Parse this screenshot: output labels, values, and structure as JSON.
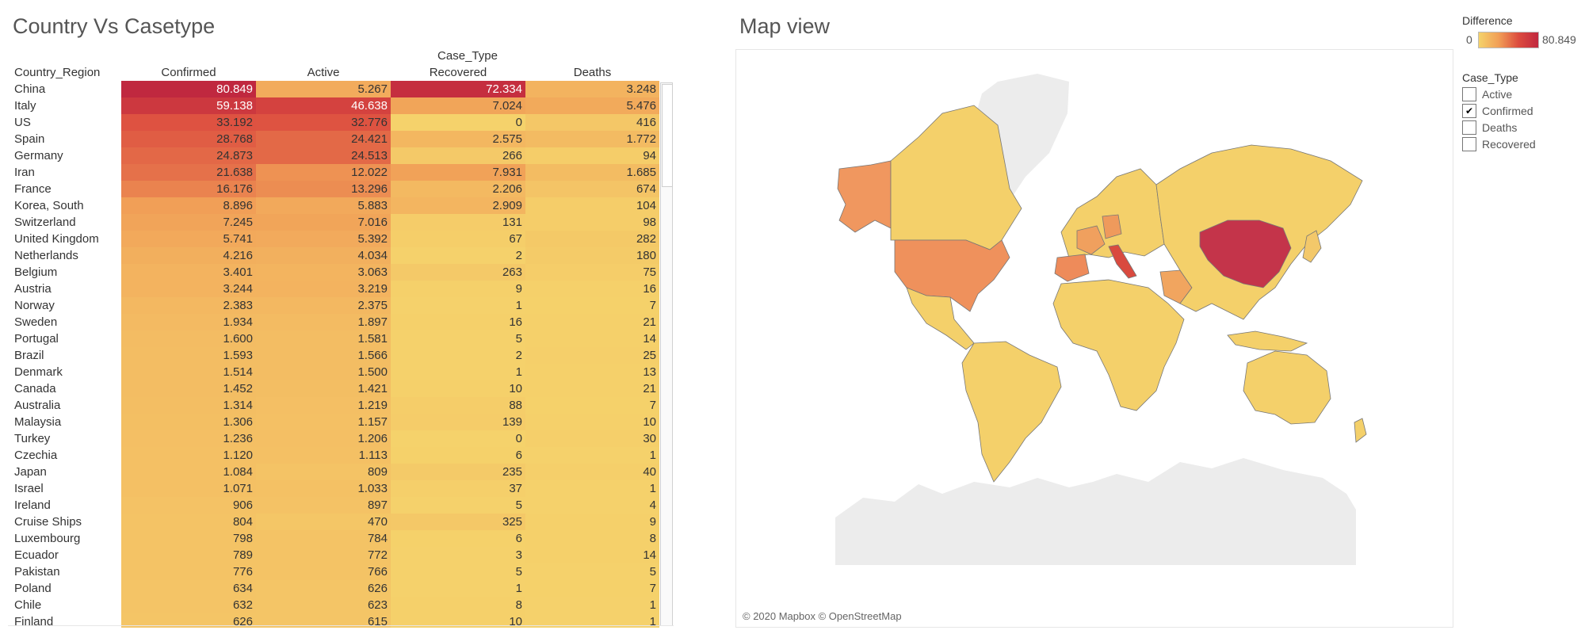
{
  "titles": {
    "table": "Country Vs Casetype",
    "map": "Map view"
  },
  "table": {
    "column_group": "Case_Type",
    "row_header": "Country_Region",
    "columns": [
      "Confirmed",
      "Active",
      "Recovered",
      "Deaths"
    ],
    "rows": [
      {
        "name": "China",
        "values": [
          "80.849",
          "5.267",
          "72.334",
          "3.248"
        ],
        "levels": [
          80849,
          5267,
          72334,
          3248
        ]
      },
      {
        "name": "Italy",
        "values": [
          "59.138",
          "46.638",
          "7.024",
          "5.476"
        ],
        "levels": [
          59138,
          46638,
          7024,
          5476
        ]
      },
      {
        "name": "US",
        "values": [
          "33.192",
          "32.776",
          "0",
          "416"
        ],
        "levels": [
          33192,
          32776,
          0,
          416
        ]
      },
      {
        "name": "Spain",
        "values": [
          "28.768",
          "24.421",
          "2.575",
          "1.772"
        ],
        "levels": [
          28768,
          24421,
          2575,
          1772
        ]
      },
      {
        "name": "Germany",
        "values": [
          "24.873",
          "24.513",
          "266",
          "94"
        ],
        "levels": [
          24873,
          24513,
          266,
          94
        ]
      },
      {
        "name": "Iran",
        "values": [
          "21.638",
          "12.022",
          "7.931",
          "1.685"
        ],
        "levels": [
          21638,
          12022,
          7931,
          1685
        ]
      },
      {
        "name": "France",
        "values": [
          "16.176",
          "13.296",
          "2.206",
          "674"
        ],
        "levels": [
          16176,
          13296,
          2206,
          674
        ]
      },
      {
        "name": "Korea, South",
        "values": [
          "8.896",
          "5.883",
          "2.909",
          "104"
        ],
        "levels": [
          8896,
          5883,
          2909,
          104
        ]
      },
      {
        "name": "Switzerland",
        "values": [
          "7.245",
          "7.016",
          "131",
          "98"
        ],
        "levels": [
          7245,
          7016,
          131,
          98
        ]
      },
      {
        "name": "United Kingdom",
        "values": [
          "5.741",
          "5.392",
          "67",
          "282"
        ],
        "levels": [
          5741,
          5392,
          67,
          282
        ]
      },
      {
        "name": "Netherlands",
        "values": [
          "4.216",
          "4.034",
          "2",
          "180"
        ],
        "levels": [
          4216,
          4034,
          2,
          180
        ]
      },
      {
        "name": "Belgium",
        "values": [
          "3.401",
          "3.063",
          "263",
          "75"
        ],
        "levels": [
          3401,
          3063,
          263,
          75
        ]
      },
      {
        "name": "Austria",
        "values": [
          "3.244",
          "3.219",
          "9",
          "16"
        ],
        "levels": [
          3244,
          3219,
          9,
          16
        ]
      },
      {
        "name": "Norway",
        "values": [
          "2.383",
          "2.375",
          "1",
          "7"
        ],
        "levels": [
          2383,
          2375,
          1,
          7
        ]
      },
      {
        "name": "Sweden",
        "values": [
          "1.934",
          "1.897",
          "16",
          "21"
        ],
        "levels": [
          1934,
          1897,
          16,
          21
        ]
      },
      {
        "name": "Portugal",
        "values": [
          "1.600",
          "1.581",
          "5",
          "14"
        ],
        "levels": [
          1600,
          1581,
          5,
          14
        ]
      },
      {
        "name": "Brazil",
        "values": [
          "1.593",
          "1.566",
          "2",
          "25"
        ],
        "levels": [
          1593,
          1566,
          2,
          25
        ]
      },
      {
        "name": "Denmark",
        "values": [
          "1.514",
          "1.500",
          "1",
          "13"
        ],
        "levels": [
          1514,
          1500,
          1,
          13
        ]
      },
      {
        "name": "Canada",
        "values": [
          "1.452",
          "1.421",
          "10",
          "21"
        ],
        "levels": [
          1452,
          1421,
          10,
          21
        ]
      },
      {
        "name": "Australia",
        "values": [
          "1.314",
          "1.219",
          "88",
          "7"
        ],
        "levels": [
          1314,
          1219,
          88,
          7
        ]
      },
      {
        "name": "Malaysia",
        "values": [
          "1.306",
          "1.157",
          "139",
          "10"
        ],
        "levels": [
          1306,
          1157,
          139,
          10
        ]
      },
      {
        "name": "Turkey",
        "values": [
          "1.236",
          "1.206",
          "0",
          "30"
        ],
        "levels": [
          1236,
          1206,
          0,
          30
        ]
      },
      {
        "name": "Czechia",
        "values": [
          "1.120",
          "1.113",
          "6",
          "1"
        ],
        "levels": [
          1120,
          1113,
          6,
          1
        ]
      },
      {
        "name": "Japan",
        "values": [
          "1.084",
          "809",
          "235",
          "40"
        ],
        "levels": [
          1084,
          809,
          235,
          40
        ]
      },
      {
        "name": "Israel",
        "values": [
          "1.071",
          "1.033",
          "37",
          "1"
        ],
        "levels": [
          1071,
          1033,
          37,
          1
        ]
      },
      {
        "name": "Ireland",
        "values": [
          "906",
          "897",
          "5",
          "4"
        ],
        "levels": [
          906,
          897,
          5,
          4
        ]
      },
      {
        "name": "Cruise Ships",
        "values": [
          "804",
          "470",
          "325",
          "9"
        ],
        "levels": [
          804,
          470,
          325,
          9
        ]
      },
      {
        "name": "Luxembourg",
        "values": [
          "798",
          "784",
          "6",
          "8"
        ],
        "levels": [
          798,
          784,
          6,
          8
        ]
      },
      {
        "name": "Ecuador",
        "values": [
          "789",
          "772",
          "3",
          "14"
        ],
        "levels": [
          789,
          772,
          3,
          14
        ]
      },
      {
        "name": "Pakistan",
        "values": [
          "776",
          "766",
          "5",
          "5"
        ],
        "levels": [
          776,
          766,
          5,
          5
        ]
      },
      {
        "name": "Poland",
        "values": [
          "634",
          "626",
          "1",
          "7"
        ],
        "levels": [
          634,
          626,
          1,
          7
        ]
      },
      {
        "name": "Chile",
        "values": [
          "632",
          "623",
          "8",
          "1"
        ],
        "levels": [
          632,
          623,
          8,
          1
        ]
      },
      {
        "name": "Finland",
        "values": [
          "626",
          "615",
          "10",
          "1"
        ],
        "levels": [
          626,
          615,
          10,
          1
        ]
      }
    ]
  },
  "legend": {
    "title": "Difference",
    "min": "0",
    "max": "80.849",
    "max_value": 80849,
    "colors": [
      "#f5d26b",
      "#f19f57",
      "#dc4c3f",
      "#c0283f"
    ]
  },
  "filter": {
    "title": "Case_Type",
    "items": [
      {
        "label": "Active",
        "checked": false,
        "mark": ""
      },
      {
        "label": "Confirmed",
        "checked": true,
        "mark": "✔"
      },
      {
        "label": "Deaths",
        "checked": false,
        "mark": ""
      },
      {
        "label": "Recovered",
        "checked": false,
        "mark": ""
      }
    ]
  },
  "map": {
    "copyright": "© 2020 Mapbox © OpenStreetMap"
  }
}
